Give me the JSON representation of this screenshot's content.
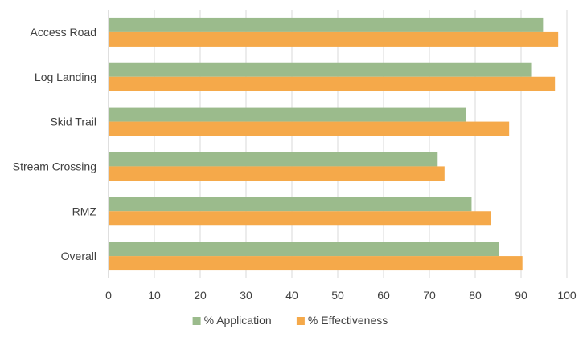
{
  "chart_data": {
    "type": "bar",
    "orientation": "horizontal",
    "title": "",
    "xlabel": "",
    "ylabel": "",
    "categories": [
      "Access Road",
      "Log Landing",
      "Skid Trail",
      "Stream Crossing",
      "RMZ",
      "Overall"
    ],
    "series": [
      {
        "name": "% Application",
        "color": "#9bbb8c",
        "values": [
          94.8,
          92.2,
          78.0,
          71.8,
          79.2,
          85.2
        ]
      },
      {
        "name": "% Effectiveness",
        "color": "#f5a94a",
        "values": [
          98.1,
          97.4,
          87.4,
          73.3,
          83.4,
          90.3
        ]
      }
    ],
    "xlim": [
      0,
      100
    ],
    "xticks": [
      "0",
      "10",
      "20",
      "30",
      "40",
      "50",
      "60",
      "70",
      "80",
      "90",
      "100"
    ],
    "grid": true,
    "legend_position": "bottom"
  }
}
